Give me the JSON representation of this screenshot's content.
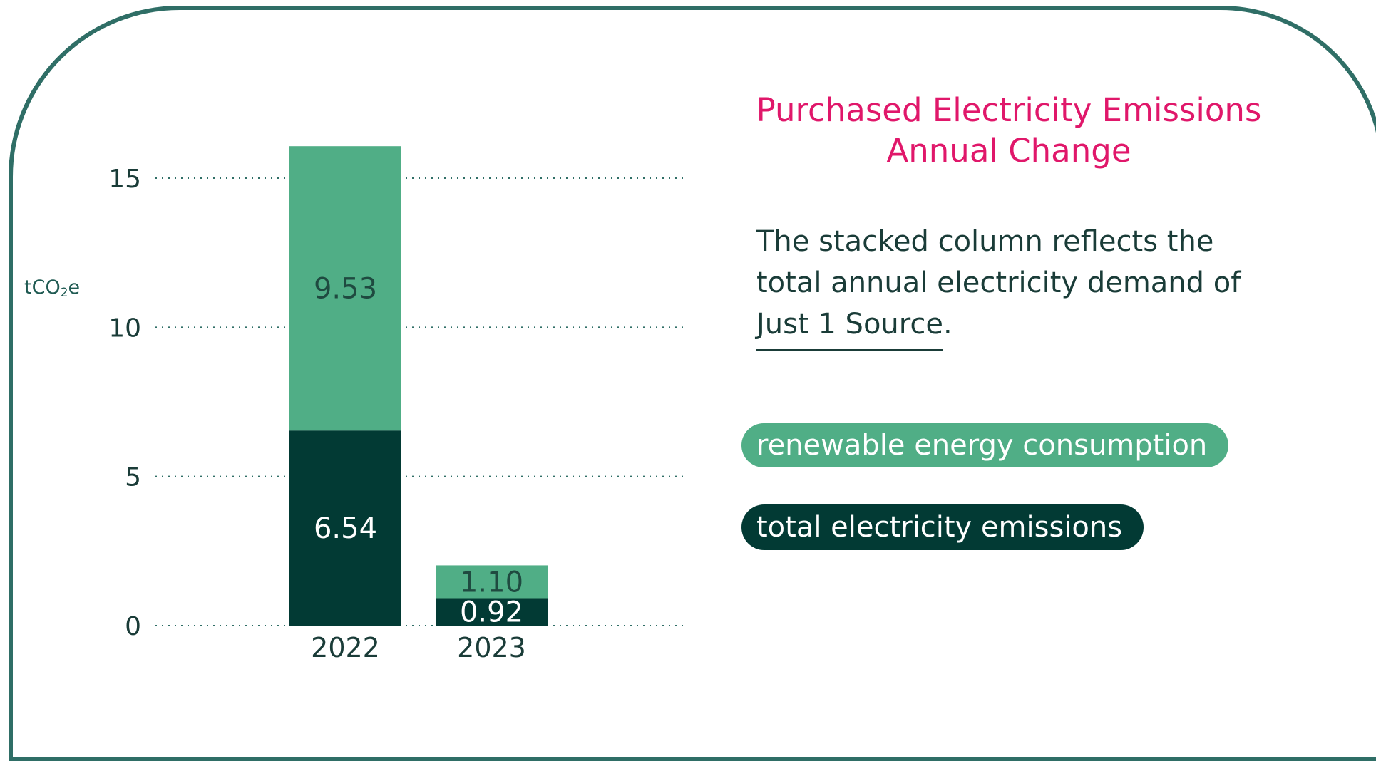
{
  "chart_data": {
    "type": "bar",
    "stacked": true,
    "title": "Purchased Electricity Emissions Annual Change",
    "ylabel": "tCO2e",
    "ylim": [
      0,
      15
    ],
    "yticks": [
      "0",
      "5",
      "10",
      "15"
    ],
    "grid": true,
    "categories": [
      "2022",
      "2023"
    ],
    "series": [
      {
        "name": "total electricity emissions",
        "color": "#023a34",
        "values": [
          6.54,
          0.92
        ],
        "labels": [
          "6.54",
          "0.92"
        ],
        "label_color": "#ffffff"
      },
      {
        "name": "renewable energy consumption",
        "color": "#50ae86",
        "values": [
          9.53,
          1.1
        ],
        "labels": [
          "9.53",
          "1.10"
        ],
        "label_color": "#1f4a40"
      }
    ],
    "legend_position": "right"
  },
  "header": {
    "title_line1": "Purchased Electricity Emissions",
    "title_line2": "Annual Change"
  },
  "unit": {
    "prefix": "tCO",
    "sub": "2",
    "suffix": "e"
  },
  "description": {
    "text": "The stacked column reflects the total annual electricity demand of ",
    "link": "Just 1 Source",
    "end": "."
  },
  "legend": {
    "renewable": "renewable energy consumption",
    "total": "total electricity emissions"
  },
  "colors": {
    "accent": "#e0176a",
    "border": "#2f6e66",
    "renewable": "#50ae86",
    "emissions": "#023a34"
  }
}
